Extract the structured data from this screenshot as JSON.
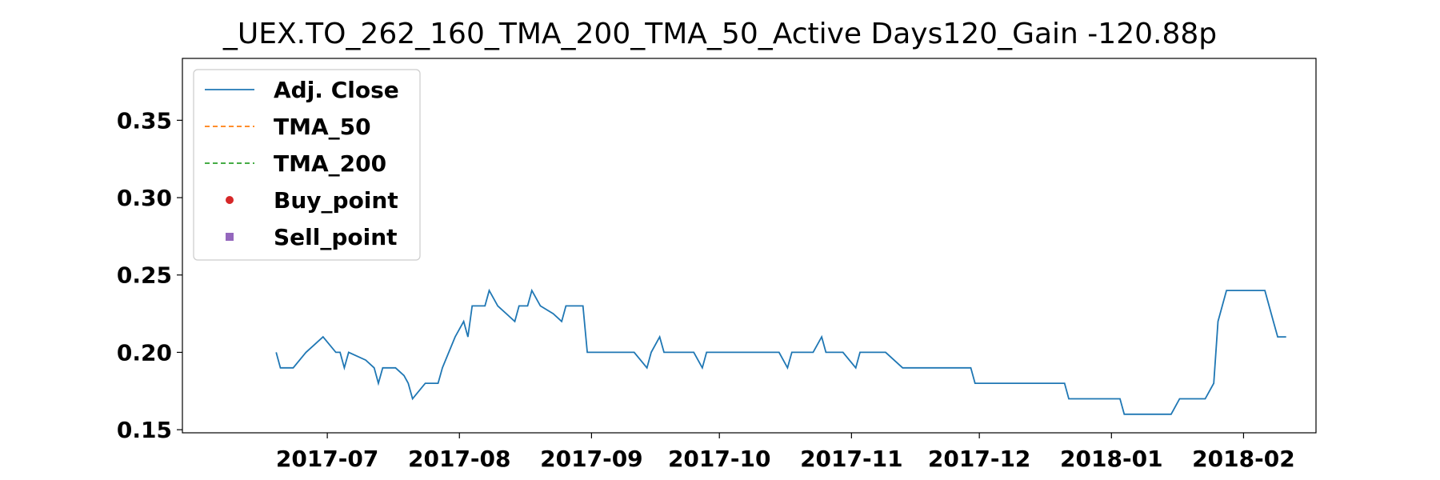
{
  "colors": {
    "adj_close": "#1f77b4",
    "tma_50": "#ff7f0e",
    "tma_200": "#2ca02c",
    "buy": "#d62728",
    "sell": "#9467bd"
  },
  "chart_data": {
    "type": "line",
    "title": "_UEX.TO_262_160_TMA_200_TMA_50_Active Days120_Gain -120.88p",
    "xlabel": "",
    "ylabel": "",
    "x_range": [
      "2017-05-28",
      "2018-02-18"
    ],
    "ylim": [
      0.148,
      0.39
    ],
    "x_ticks": [
      "2017-07-01",
      "2017-08-01",
      "2017-09-01",
      "2017-10-01",
      "2017-11-01",
      "2017-12-01",
      "2018-01-01",
      "2018-02-01"
    ],
    "x_tick_labels": [
      "2017-07",
      "2017-08",
      "2017-09",
      "2017-10",
      "2017-11",
      "2017-12",
      "2018-01",
      "2018-02"
    ],
    "y_ticks": [
      0.15,
      0.2,
      0.25,
      0.3,
      0.35
    ],
    "y_tick_labels": [
      "0.15",
      "0.20",
      "0.25",
      "0.30",
      "0.35"
    ],
    "grid": false,
    "legend_position": "top-left",
    "series": [
      {
        "name": "Adj. Close",
        "style": "solid",
        "points": [
          [
            "2017-06-19",
            0.2
          ],
          [
            "2017-06-20",
            0.19
          ],
          [
            "2017-06-22",
            0.19
          ],
          [
            "2017-06-23",
            0.19
          ],
          [
            "2017-06-26",
            0.2
          ],
          [
            "2017-06-28",
            0.205
          ],
          [
            "2017-06-30",
            0.21
          ],
          [
            "2017-07-03",
            0.2
          ],
          [
            "2017-07-04",
            0.2
          ],
          [
            "2017-07-05",
            0.19
          ],
          [
            "2017-07-06",
            0.2
          ],
          [
            "2017-07-10",
            0.195
          ],
          [
            "2017-07-12",
            0.19
          ],
          [
            "2017-07-13",
            0.18
          ],
          [
            "2017-07-14",
            0.19
          ],
          [
            "2017-07-17",
            0.19
          ],
          [
            "2017-07-19",
            0.185
          ],
          [
            "2017-07-20",
            0.18
          ],
          [
            "2017-07-21",
            0.17
          ],
          [
            "2017-07-24",
            0.18
          ],
          [
            "2017-07-27",
            0.18
          ],
          [
            "2017-07-28",
            0.19
          ],
          [
            "2017-07-31",
            0.21
          ],
          [
            "2017-08-02",
            0.22
          ],
          [
            "2017-08-03",
            0.21
          ],
          [
            "2017-08-04",
            0.23
          ],
          [
            "2017-08-07",
            0.23
          ],
          [
            "2017-08-08",
            0.24
          ],
          [
            "2017-08-10",
            0.23
          ],
          [
            "2017-08-14",
            0.22
          ],
          [
            "2017-08-15",
            0.23
          ],
          [
            "2017-08-17",
            0.23
          ],
          [
            "2017-08-18",
            0.24
          ],
          [
            "2017-08-20",
            0.23
          ],
          [
            "2017-08-23",
            0.225
          ],
          [
            "2017-08-25",
            0.22
          ],
          [
            "2017-08-26",
            0.23
          ],
          [
            "2017-08-28",
            0.23
          ],
          [
            "2017-08-30",
            0.23
          ],
          [
            "2017-08-31",
            0.2
          ],
          [
            "2017-09-05",
            0.2
          ],
          [
            "2017-09-07",
            0.2
          ],
          [
            "2017-09-08",
            0.2
          ],
          [
            "2017-09-11",
            0.2
          ],
          [
            "2017-09-14",
            0.19
          ],
          [
            "2017-09-15",
            0.2
          ],
          [
            "2017-09-17",
            0.21
          ],
          [
            "2017-09-18",
            0.2
          ],
          [
            "2017-09-20",
            0.2
          ],
          [
            "2017-09-25",
            0.2
          ],
          [
            "2017-09-27",
            0.19
          ],
          [
            "2017-09-28",
            0.2
          ],
          [
            "2017-10-02",
            0.2
          ],
          [
            "2017-10-06",
            0.2
          ],
          [
            "2017-10-12",
            0.2
          ],
          [
            "2017-10-15",
            0.2
          ],
          [
            "2017-10-17",
            0.19
          ],
          [
            "2017-10-18",
            0.2
          ],
          [
            "2017-10-23",
            0.2
          ],
          [
            "2017-10-25",
            0.21
          ],
          [
            "2017-10-26",
            0.2
          ],
          [
            "2017-10-30",
            0.2
          ],
          [
            "2017-11-02",
            0.19
          ],
          [
            "2017-11-03",
            0.2
          ],
          [
            "2017-11-06",
            0.2
          ],
          [
            "2017-11-09",
            0.2
          ],
          [
            "2017-11-13",
            0.19
          ],
          [
            "2017-11-16",
            0.19
          ],
          [
            "2017-11-22",
            0.19
          ],
          [
            "2017-11-24",
            0.19
          ],
          [
            "2017-11-27",
            0.19
          ],
          [
            "2017-11-29",
            0.19
          ],
          [
            "2017-11-30",
            0.18
          ],
          [
            "2017-12-04",
            0.18
          ],
          [
            "2017-12-08",
            0.18
          ],
          [
            "2017-12-13",
            0.18
          ],
          [
            "2017-12-19",
            0.18
          ],
          [
            "2017-12-21",
            0.18
          ],
          [
            "2017-12-22",
            0.17
          ],
          [
            "2017-12-27",
            0.17
          ],
          [
            "2017-12-29",
            0.17
          ],
          [
            "2018-01-03",
            0.17
          ],
          [
            "2018-01-04",
            0.16
          ],
          [
            "2018-01-08",
            0.16
          ],
          [
            "2018-01-10",
            0.16
          ],
          [
            "2018-01-12",
            0.16
          ],
          [
            "2018-01-15",
            0.16
          ],
          [
            "2018-01-17",
            0.17
          ],
          [
            "2018-01-20",
            0.17
          ],
          [
            "2018-01-22",
            0.17
          ],
          [
            "2018-01-23",
            0.17
          ],
          [
            "2018-01-25",
            0.18
          ],
          [
            "2018-01-26",
            0.22
          ],
          [
            "2018-01-28",
            0.24
          ],
          [
            "2018-01-30",
            0.24
          ],
          [
            "2018-02-01",
            0.24
          ],
          [
            "2018-02-06",
            0.24
          ],
          [
            "2018-02-08",
            0.22
          ],
          [
            "2018-02-09",
            0.21
          ],
          [
            "2018-02-11",
            0.21
          ]
        ]
      },
      {
        "name": "TMA_50",
        "style": "dashed",
        "points": []
      },
      {
        "name": "TMA_200",
        "style": "dashed",
        "points": []
      },
      {
        "name": "Buy_point",
        "style": "marker-circle",
        "points": []
      },
      {
        "name": "Sell_point",
        "style": "marker-square",
        "points": []
      }
    ]
  }
}
